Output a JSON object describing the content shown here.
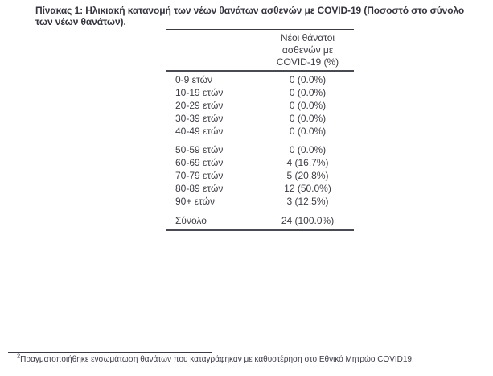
{
  "page": {
    "title": "Πίνακας 1: Ηλικιακή κατανομή των νέων θανάτων ασθενών με COVID-19 (Ποσοστό στο σύνολο των νέων θανάτων)."
  },
  "table": {
    "header_lines": [
      "Νέοι θάνατοι",
      "ασθενών με",
      "COVID-19 (%)"
    ],
    "groups": [
      {
        "rows": [
          {
            "label": "0-9 ετών",
            "value": "0 (0.0%)"
          },
          {
            "label": "10-19 ετών",
            "value": "0 (0.0%)"
          },
          {
            "label": "20-29 ετών",
            "value": "0 (0.0%)"
          },
          {
            "label": "30-39 ετών",
            "value": "0 (0.0%)"
          },
          {
            "label": "40-49 ετών",
            "value": "0 (0.0%)"
          }
        ]
      },
      {
        "rows": [
          {
            "label": "50-59 ετών",
            "value": "0 (0.0%)"
          },
          {
            "label": "60-69 ετών",
            "value": "4 (16.7%)"
          },
          {
            "label": "70-79 ετών",
            "value": "5 (20.8%)"
          },
          {
            "label": "80-89 ετών",
            "value": "12 (50.0%)"
          },
          {
            "label": "90+ ετών",
            "value": "3 (12.5%)"
          }
        ]
      }
    ],
    "total": {
      "label": "Σύνολο",
      "value": "24 (100.0%)"
    }
  },
  "footnote": {
    "marker": "2",
    "text": "Πραγματοποιήθηκε ενσωμάτωση θανάτων που καταγράφηκαν με καθυστέρηση στο Εθνικό Μητρώο COVID19."
  },
  "colors": {
    "title_text": "#35353f",
    "body_text": "#3d3d45",
    "rule": "#3b3b43"
  }
}
